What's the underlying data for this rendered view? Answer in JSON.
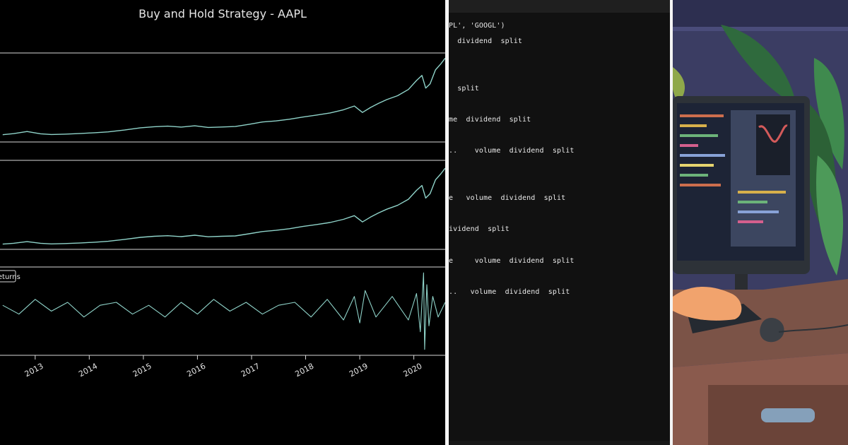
{
  "chart_data": {
    "type": "line",
    "title": "Buy and Hold Strategy - AAPL",
    "x_axis": {
      "tick_labels": [
        "2013",
        "2014",
        "2015",
        "2016",
        "2017",
        "2018",
        "2019",
        "2020"
      ],
      "range": [
        2012.35,
        2020.58
      ]
    },
    "subplots": [
      {
        "name": "price-line",
        "series_name": "",
        "years": [
          2012.4,
          2012.6,
          2012.85,
          2013.1,
          2013.3,
          2013.55,
          2013.85,
          2014.1,
          2014.35,
          2014.65,
          2014.95,
          2015.2,
          2015.45,
          2015.7,
          2015.95,
          2016.2,
          2016.45,
          2016.7,
          2016.95,
          2017.2,
          2017.45,
          2017.7,
          2017.95,
          2018.2,
          2018.45,
          2018.7,
          2018.9,
          2019.05,
          2019.2,
          2019.35,
          2019.5,
          2019.7,
          2019.9,
          2020.05,
          2020.15,
          2020.22,
          2020.3,
          2020.4,
          2020.5,
          2020.58
        ],
        "values": [
          14.2,
          15.1,
          16.9,
          15.0,
          14.4,
          14.7,
          15.3,
          15.9,
          16.6,
          18.2,
          20.1,
          21.0,
          21.5,
          20.7,
          21.8,
          20.4,
          20.8,
          21.2,
          23.0,
          25.1,
          26.0,
          27.4,
          29.3,
          31.0,
          32.8,
          35.5,
          38.7,
          33.2,
          37.5,
          41.0,
          44.2,
          47.5,
          52.8,
          60.5,
          64.8,
          54.0,
          57.6,
          69.5,
          74.8,
          79.6
        ],
        "ylim": [
          8,
          84
        ]
      },
      {
        "name": "cumulative-returns-line",
        "series_name": "",
        "years": [
          2012.4,
          2012.6,
          2012.85,
          2013.1,
          2013.3,
          2013.55,
          2013.85,
          2014.1,
          2014.35,
          2014.65,
          2014.95,
          2015.2,
          2015.45,
          2015.7,
          2015.95,
          2016.2,
          2016.45,
          2016.7,
          2016.95,
          2017.2,
          2017.45,
          2017.7,
          2017.95,
          2018.2,
          2018.45,
          2018.7,
          2018.9,
          2019.05,
          2019.2,
          2019.35,
          2019.5,
          2019.7,
          2019.9,
          2020.05,
          2020.15,
          2020.22,
          2020.3,
          2020.4,
          2020.5,
          2020.58
        ],
        "values": [
          1.0,
          1.05,
          1.14,
          1.05,
          1.01,
          1.03,
          1.07,
          1.11,
          1.16,
          1.27,
          1.39,
          1.45,
          1.48,
          1.43,
          1.51,
          1.42,
          1.45,
          1.47,
          1.59,
          1.72,
          1.79,
          1.88,
          2.01,
          2.12,
          2.24,
          2.42,
          2.63,
          2.27,
          2.55,
          2.79,
          3.0,
          3.22,
          3.57,
          4.08,
          4.36,
          3.64,
          3.89,
          4.68,
          5.03,
          5.35
        ],
        "ylim": [
          0.7,
          5.8
        ]
      },
      {
        "name": "daily-returns-line",
        "series_name": "returns",
        "years": [
          2012.4,
          2012.7,
          2013.0,
          2013.3,
          2013.6,
          2013.9,
          2014.2,
          2014.5,
          2014.8,
          2015.1,
          2015.4,
          2015.7,
          2016.0,
          2016.3,
          2016.6,
          2016.9,
          2017.2,
          2017.5,
          2017.8,
          2018.1,
          2018.4,
          2018.7,
          2018.9,
          2019.0,
          2019.1,
          2019.3,
          2019.6,
          2019.9,
          2020.05,
          2020.12,
          2020.18,
          2020.2,
          2020.24,
          2020.28,
          2020.35,
          2020.45,
          2020.58
        ],
        "values": [
          0.01,
          -0.02,
          0.03,
          -0.01,
          0.02,
          -0.03,
          0.01,
          0.02,
          -0.02,
          0.01,
          -0.03,
          0.02,
          -0.02,
          0.03,
          -0.01,
          0.02,
          -0.02,
          0.01,
          0.02,
          -0.03,
          0.03,
          -0.04,
          0.04,
          -0.05,
          0.06,
          -0.03,
          0.04,
          -0.04,
          0.05,
          -0.08,
          0.12,
          -0.14,
          0.08,
          -0.06,
          0.04,
          -0.03,
          0.02
        ],
        "ylim": [
          -0.16,
          0.14
        ]
      }
    ]
  },
  "terminal": {
    "lines": [
      "PL', 'GOOGL')",
      "  dividend  split",
      "  split",
      "me  dividend  split",
      "..    volume  dividend  split",
      "e   volume  dividend  split",
      "ividend  split",
      "e     volume  dividend  split",
      "..   volume  dividend  split"
    ]
  },
  "colors": {
    "line": "#8fd3c9",
    "background": "#000000",
    "axis": "#d9d9d9",
    "text": "#e6e6e6",
    "terminal_bg": "#111111",
    "illustration_bg": "#3b3d63"
  },
  "icons": {
    "returns_legend": "legend-box"
  }
}
